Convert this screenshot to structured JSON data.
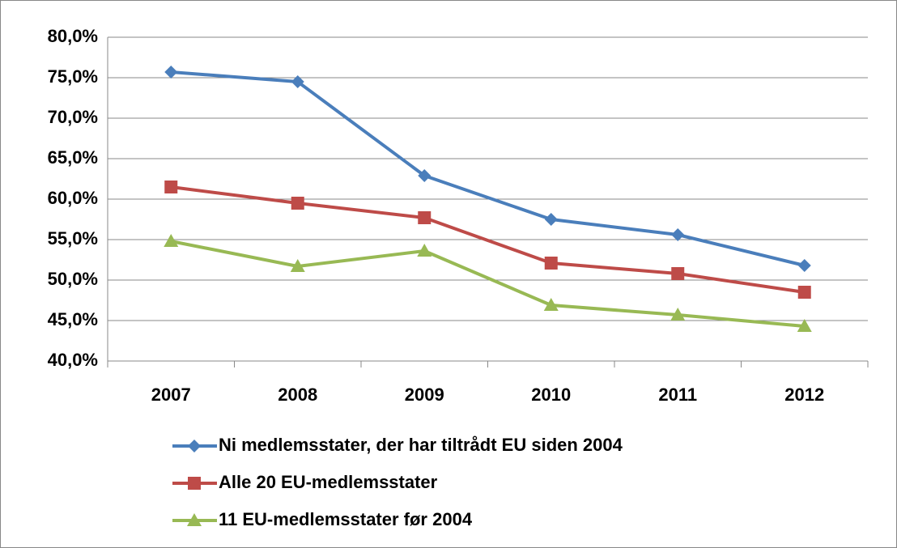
{
  "chart_data": {
    "type": "line",
    "categories": [
      "2007",
      "2008",
      "2009",
      "2010",
      "2011",
      "2012"
    ],
    "series": [
      {
        "name": "Ni medlemsstater, der har tiltrådt EU siden 2004",
        "color": "#4a7ebb",
        "marker": "diamond",
        "values": [
          75.7,
          74.5,
          62.9,
          57.5,
          55.6,
          51.8
        ]
      },
      {
        "name": "Alle 20 EU-medlemsstater",
        "color": "#be4b48",
        "marker": "square",
        "values": [
          61.5,
          59.5,
          57.7,
          52.1,
          50.8,
          48.5
        ]
      },
      {
        "name": "11 EU-medlemsstater før 2004",
        "color": "#98b954",
        "marker": "triangle",
        "values": [
          54.8,
          51.7,
          53.6,
          46.9,
          45.7,
          44.3
        ]
      }
    ],
    "ylim": [
      40,
      80
    ],
    "yticks": [
      {
        "value": 40,
        "label": "40,0%"
      },
      {
        "value": 45,
        "label": "45,0%"
      },
      {
        "value": 50,
        "label": "50,0%"
      },
      {
        "value": 55,
        "label": "55,0%"
      },
      {
        "value": 60,
        "label": "60,0%"
      },
      {
        "value": 65,
        "label": "65,0%"
      },
      {
        "value": 70,
        "label": "70,0%"
      },
      {
        "value": 75,
        "label": "75,0%"
      },
      {
        "value": 80,
        "label": "80,0%"
      }
    ],
    "grid": true,
    "legend": "bottom"
  }
}
